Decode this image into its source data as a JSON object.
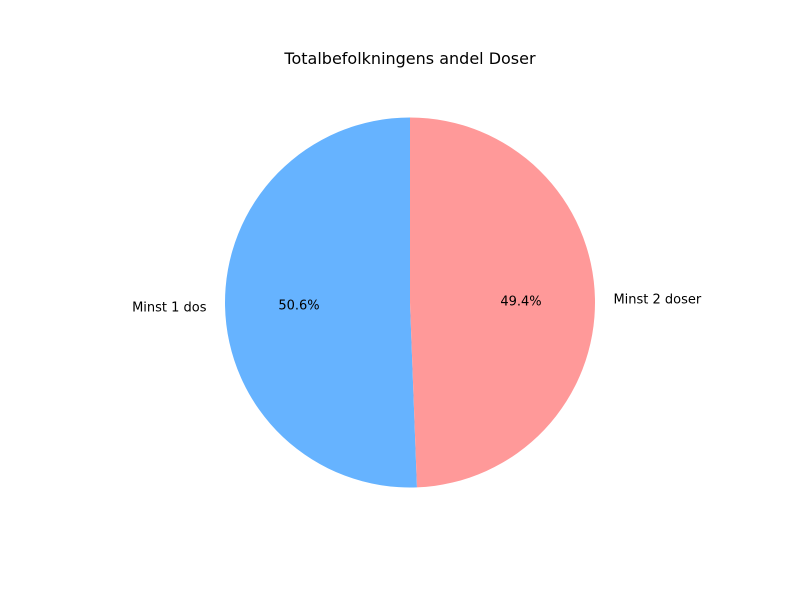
{
  "chart_data": {
    "type": "pie",
    "title": "Totalbefolkningens andel Doser",
    "slices": [
      {
        "label": "Minst 1 dos",
        "value": 50.6,
        "pct_label": "50.6%",
        "color": "#66b3ff"
      },
      {
        "label": "Minst 2 doser",
        "value": 49.4,
        "pct_label": "49.4%",
        "color": "#ff9999"
      }
    ],
    "start_angle_deg": 90,
    "direction": "counterclockwise"
  }
}
